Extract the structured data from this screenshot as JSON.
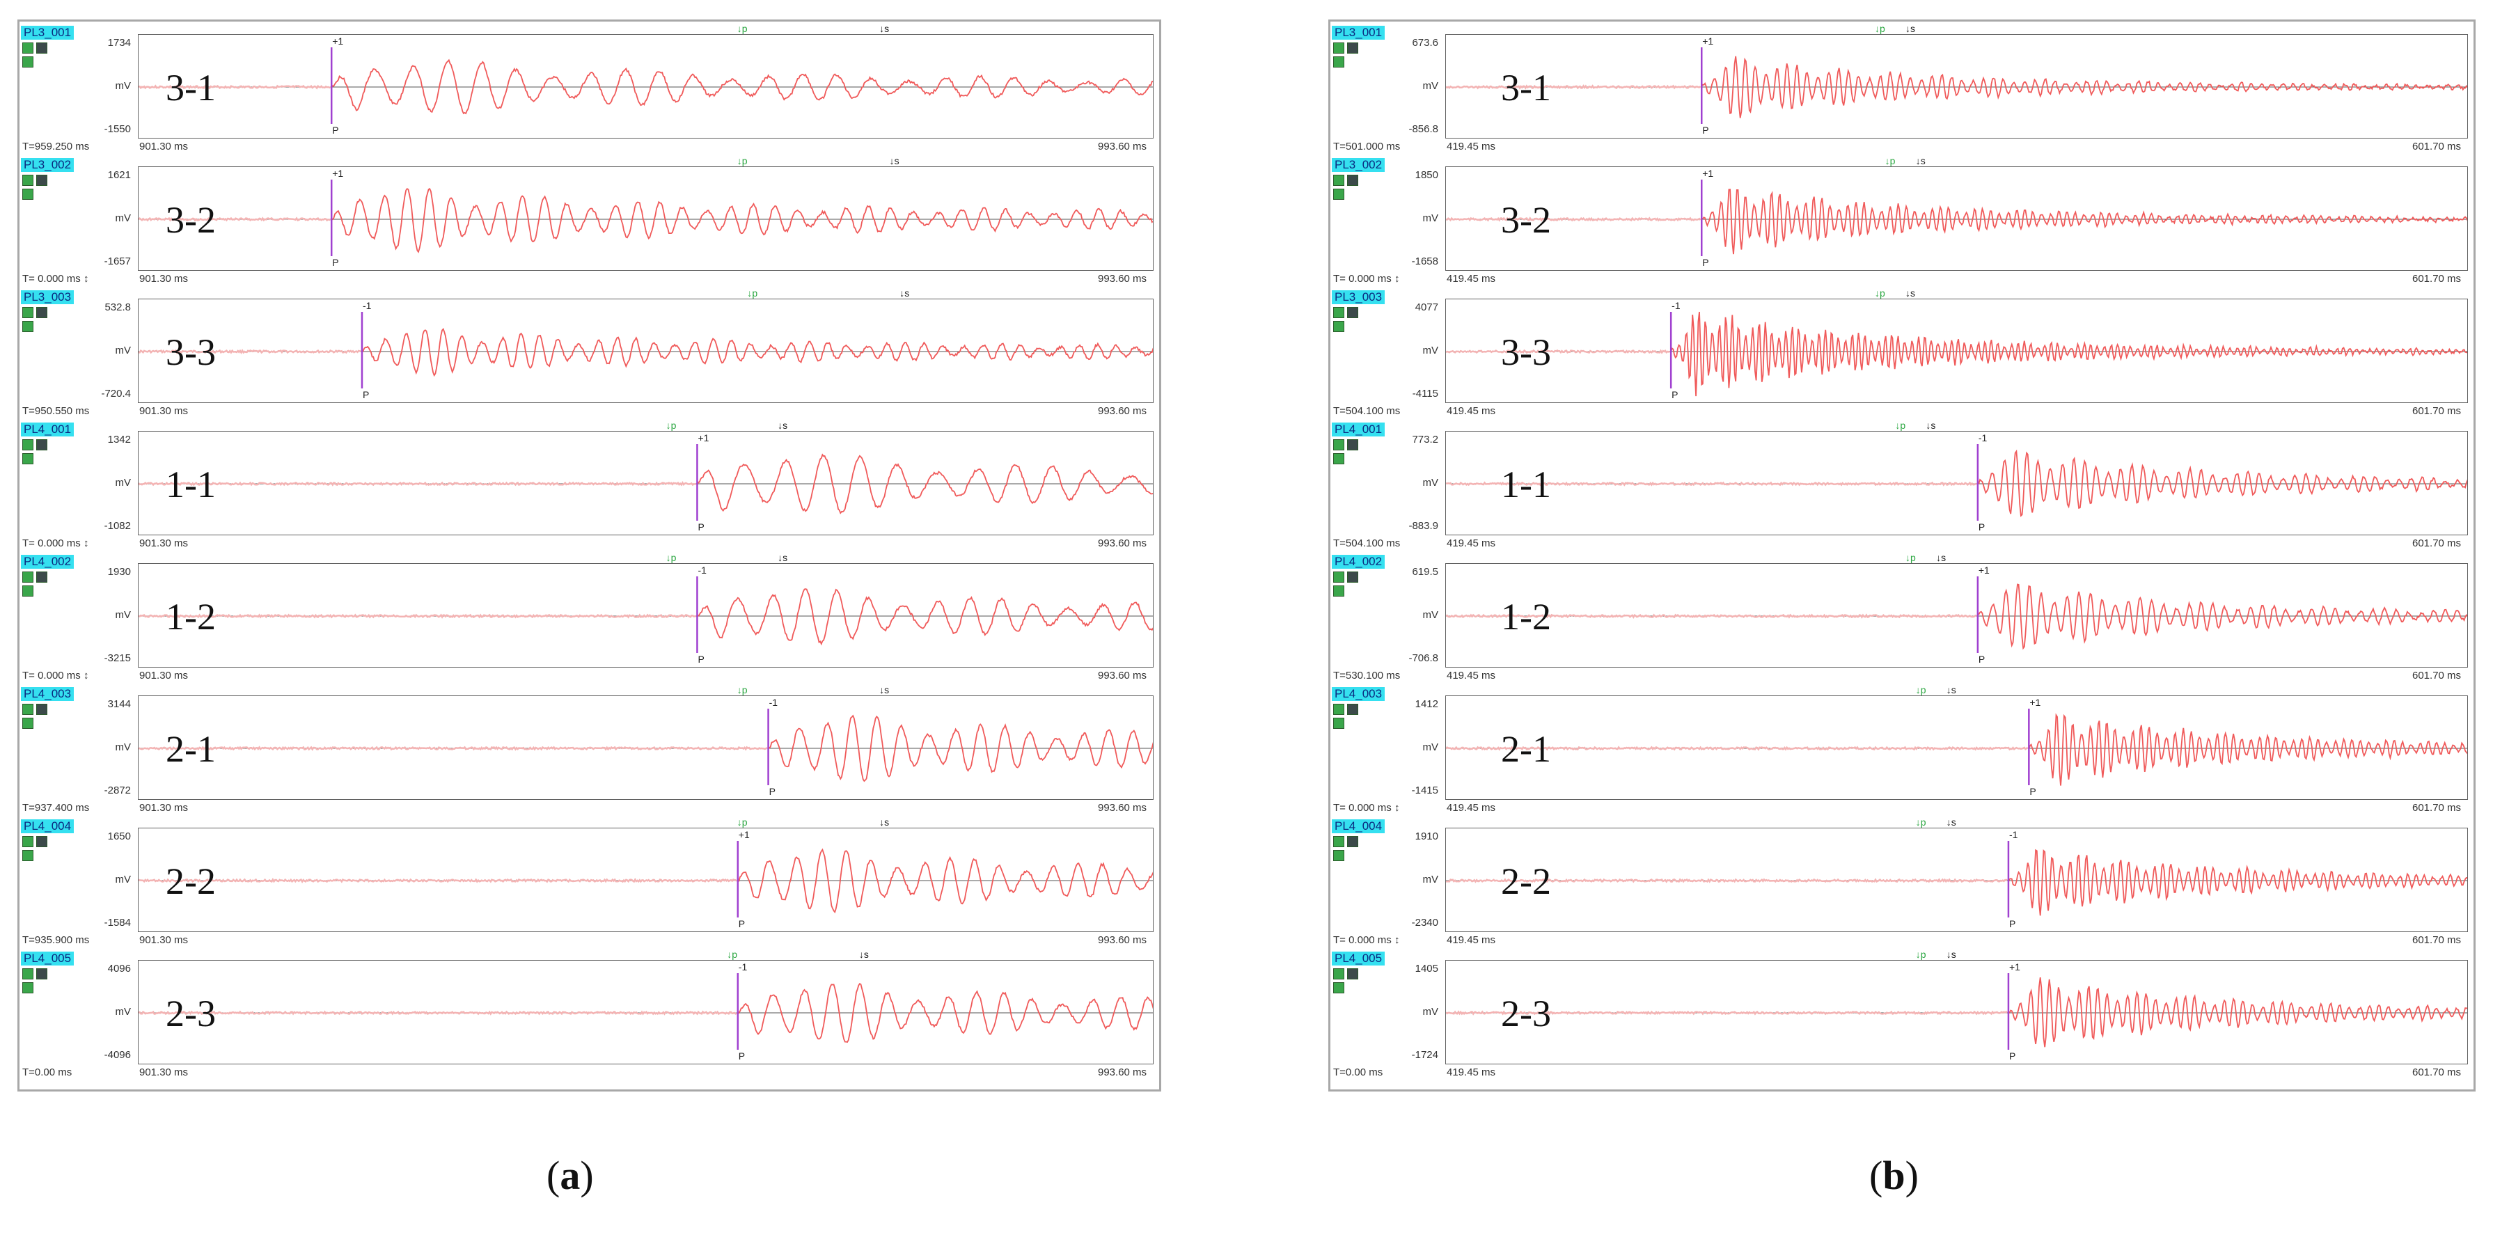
{
  "panels": [
    {
      "caption_letter": "a",
      "t_start": "901.30 ms",
      "t_end": "993.60 ms",
      "channels": [
        {
          "id": "PL3_001",
          "label": "3-1",
          "y_max": "1734",
          "unit": "mV",
          "y_min": "-1550",
          "t": "T=959.250 ms",
          "arrival": 0.19,
          "pol": "+1",
          "p": 0.59,
          "s": 0.73,
          "freq": 13,
          "amp": 0.75
        },
        {
          "id": "PL3_002",
          "label": "3-2",
          "y_max": "1621",
          "unit": "mV",
          "y_min": "-1657",
          "t": "T= 0.000 ms ↕",
          "arrival": 0.19,
          "pol": "+1",
          "p": 0.59,
          "s": 0.74,
          "freq": 20,
          "amp": 0.8
        },
        {
          "id": "PL3_003",
          "label": "3-3",
          "y_max": "532.8",
          "unit": "mV",
          "y_min": "-720.4",
          "t": "T=950.550 ms",
          "arrival": 0.22,
          "pol": "-1",
          "p": 0.6,
          "s": 0.75,
          "freq": 24,
          "amp": 0.55
        },
        {
          "id": "PL4_001",
          "label": "1-1",
          "y_max": "1342",
          "unit": "mV",
          "y_min": "-1082",
          "t": "T= 0.000 ms ↕",
          "arrival": 0.55,
          "pol": "+1",
          "p": 0.52,
          "s": 0.63,
          "freq": 12,
          "amp": 0.85
        },
        {
          "id": "PL4_002",
          "label": "1-2",
          "y_max": "1930",
          "unit": "mV",
          "y_min": "-3215",
          "t": "T= 0.000 ms ↕",
          "arrival": 0.55,
          "pol": "-1",
          "p": 0.52,
          "s": 0.63,
          "freq": 14,
          "amp": 0.75
        },
        {
          "id": "PL4_003",
          "label": "2-1",
          "y_max": "3144",
          "unit": "mV",
          "y_min": "-2872",
          "t": "T=937.400 ms",
          "arrival": 0.62,
          "pol": "-1",
          "p": 0.59,
          "s": 0.73,
          "freq": 18,
          "amp": 0.85
        },
        {
          "id": "PL4_004",
          "label": "2-2",
          "y_max": "1650",
          "unit": "mV",
          "y_min": "-1584",
          "t": "T=935.900 ms",
          "arrival": 0.59,
          "pol": "+1",
          "p": 0.59,
          "s": 0.73,
          "freq": 18,
          "amp": 0.8
        },
        {
          "id": "PL4_005",
          "label": "2-3",
          "y_max": "4096",
          "unit": "mV",
          "y_min": "-4096",
          "t": "T=0.00 ms",
          "arrival": 0.59,
          "pol": "-1",
          "p": 0.58,
          "s": 0.71,
          "freq": 16,
          "amp": 0.8
        }
      ]
    },
    {
      "caption_letter": "b",
      "t_start": "419.45 ms",
      "t_end": "601.70 ms",
      "channels": [
        {
          "id": "PL3_001",
          "label": "3-1",
          "y_max": "673.6",
          "unit": "mV",
          "y_min": "-856.8",
          "t": "T=501.000 ms",
          "arrival": 0.25,
          "pol": "+1",
          "p": 0.42,
          "s": 0.45,
          "freq": 45,
          "amp": 0.7
        },
        {
          "id": "PL3_002",
          "label": "3-2",
          "y_max": "1850",
          "unit": "mV",
          "y_min": "-1658",
          "t": "T= 0.000 ms ↕",
          "arrival": 0.25,
          "pol": "+1",
          "p": 0.43,
          "s": 0.46,
          "freq": 55,
          "amp": 0.75
        },
        {
          "id": "PL3_003",
          "label": "3-3",
          "y_max": "4077",
          "unit": "mV",
          "y_min": "-4115",
          "t": "T=504.100 ms",
          "arrival": 0.22,
          "pol": "-1",
          "p": 0.42,
          "s": 0.45,
          "freq": 70,
          "amp": 0.95
        },
        {
          "id": "PL4_001",
          "label": "1-1",
          "y_max": "773.2",
          "unit": "mV",
          "y_min": "-883.9",
          "t": "T=504.100 ms",
          "arrival": 0.52,
          "pol": "-1",
          "p": 0.44,
          "s": 0.47,
          "freq": 40,
          "amp": 0.8
        },
        {
          "id": "PL4_002",
          "label": "1-2",
          "y_max": "619.5",
          "unit": "mV",
          "y_min": "-706.8",
          "t": "T=530.100 ms",
          "arrival": 0.52,
          "pol": "+1",
          "p": 0.45,
          "s": 0.48,
          "freq": 38,
          "amp": 0.8
        },
        {
          "id": "PL4_003",
          "label": "2-1",
          "y_max": "1412",
          "unit": "mV",
          "y_min": "-1415",
          "t": "T= 0.000 ms ↕",
          "arrival": 0.57,
          "pol": "+1",
          "p": 0.46,
          "s": 0.49,
          "freq": 55,
          "amp": 0.8
        },
        {
          "id": "PL4_004",
          "label": "2-2",
          "y_max": "1910",
          "unit": "mV",
          "y_min": "-2340",
          "t": "T= 0.000 ms ↕",
          "arrival": 0.55,
          "pol": "-1",
          "p": 0.46,
          "s": 0.49,
          "freq": 55,
          "amp": 0.75
        },
        {
          "id": "PL4_005",
          "label": "2-3",
          "y_max": "1405",
          "unit": "mV",
          "y_min": "-1724",
          "t": "T=0.00 ms",
          "arrival": 0.55,
          "pol": "+1",
          "p": 0.46,
          "s": 0.49,
          "freq": 48,
          "amp": 0.8
        }
      ]
    }
  ],
  "marker_letters": {
    "p": "P",
    "arrow_p": "p",
    "arrow_s": "s"
  },
  "colors": {
    "trace": "#f05a5a",
    "pre_trace": "#f3b3b3",
    "marker": "#a040d0",
    "tag_bg": "#35e0f0",
    "p_arrow": "#2aa640",
    "s_arrow": "#222222"
  }
}
